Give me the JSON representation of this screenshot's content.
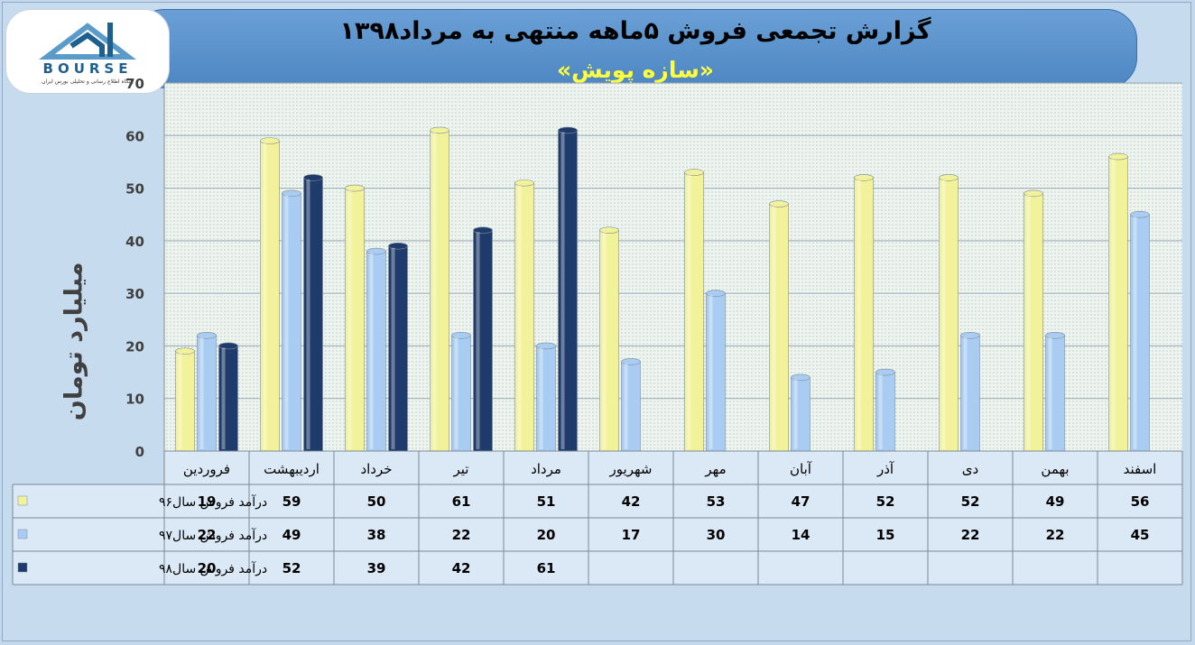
{
  "title": "گزارش تجمعی فروش ۵ماهه منتهی به مرداد۱۳۹۸",
  "subtitle": "«سازه پویش»",
  "logo": {
    "name": "BOURSE",
    "tagline": "پایگاه اطلاع رسانی و تحلیلی بورس ایران"
  },
  "colors": {
    "series1": "#f2f29a",
    "series2": "#a9cdf2",
    "series3": "#1f3b6b",
    "plot_bg": "#ecf3ee",
    "table_bg": "#dbe8f5"
  },
  "chart_data": {
    "type": "bar",
    "ylabel": "میلیارد تومان",
    "ylim": [
      0,
      70
    ],
    "yticks": [
      0,
      10,
      20,
      30,
      40,
      50,
      60,
      70
    ],
    "grid": true,
    "legend": "data-table-left",
    "categories": [
      "فروردین",
      "اردیبهشت",
      "خرداد",
      "تیر",
      "مرداد",
      "شهریور",
      "مهر",
      "آبان",
      "آذر",
      "دی",
      "بهمن",
      "اسفند"
    ],
    "series": [
      {
        "name": "درآمد فروش سال۹۶",
        "values": [
          19,
          59,
          50,
          61,
          51,
          42,
          53,
          47,
          52,
          52,
          49,
          56
        ]
      },
      {
        "name": "درآمد فروش سال۹۷",
        "values": [
          22,
          49,
          38,
          22,
          20,
          17,
          30,
          14,
          15,
          22,
          22,
          45
        ]
      },
      {
        "name": "درآمد فروش سال۹۸",
        "values": [
          20,
          52,
          39,
          42,
          61,
          null,
          null,
          null,
          null,
          null,
          null,
          null
        ]
      }
    ]
  }
}
